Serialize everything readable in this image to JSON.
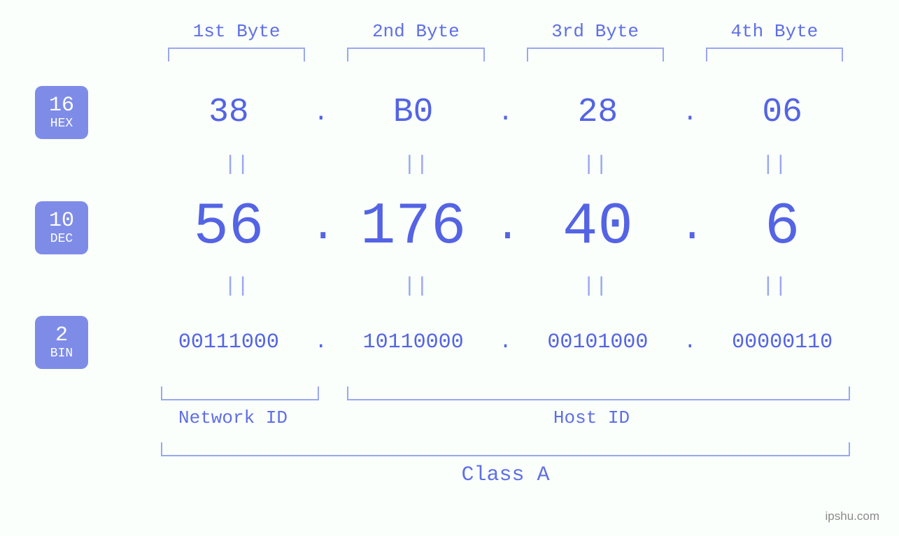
{
  "colors": {
    "background": "#fafffb",
    "badge_bg": "#7e8ce8",
    "badge_text": "#ffffff",
    "label_text": "#5f6fe6",
    "value_text": "#5464e4",
    "bracket": "#9aa7ef",
    "equals": "#9aa7ef",
    "watermark": "#8a8a8a"
  },
  "typography": {
    "font_family": "Courier New, Consolas, monospace",
    "byte_label_size": 26,
    "hex_size": 48,
    "dec_size": 84,
    "bin_size": 30,
    "equals_size": 30,
    "class_label_size": 30,
    "badge_num_size": 30,
    "badge_txt_size": 18
  },
  "byte_labels": [
    "1st Byte",
    "2nd Byte",
    "3rd Byte",
    "4th Byte"
  ],
  "bases": {
    "hex": {
      "num": "16",
      "txt": "HEX"
    },
    "dec": {
      "num": "10",
      "txt": "DEC"
    },
    "bin": {
      "num": "2",
      "txt": "BIN"
    }
  },
  "hex": [
    "38",
    "B0",
    "28",
    "06"
  ],
  "dec": [
    "56",
    "176",
    "40",
    "6"
  ],
  "bin": [
    "00111000",
    "10110000",
    "00101000",
    "00000110"
  ],
  "separator": ".",
  "equals": "||",
  "sections": {
    "network": "Network ID",
    "host": "Host ID",
    "class": "Class A"
  },
  "watermark": "ipshu.com"
}
